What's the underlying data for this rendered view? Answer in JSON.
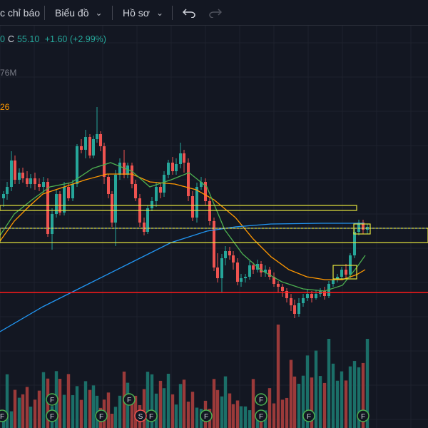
{
  "toolbar": {
    "indicators_label": "c chỉ báo",
    "chart_label": "Biểu đồ",
    "profile_label": "Hồ sơ",
    "undo_icon": "undo-icon",
    "redo_icon": "redo-icon"
  },
  "legend": {
    "open_tail": "0",
    "close_key": "C",
    "close_value": "55.10",
    "change": "+1.60 (+2.99%)",
    "volume_tail": "76M",
    "ma_tail": "26"
  },
  "colors": {
    "background": "#131722",
    "up": "#26a69a",
    "down": "#ef5350",
    "ma_fast": "#4caf50",
    "ma_slow": "#ff9800",
    "ma_long": "#2196f3",
    "zone": "#e6e63c",
    "support": "#ff1a1a"
  },
  "markers": {
    "F": "F",
    "S": "S"
  }
}
